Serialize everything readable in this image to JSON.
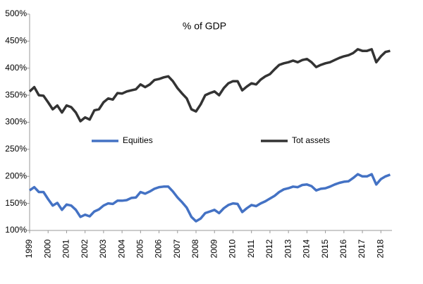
{
  "chart_data": {
    "type": "line",
    "subtitle": "% of GDP",
    "x": [
      1999,
      1999.25,
      1999.5,
      1999.75,
      2000,
      2000.25,
      2000.5,
      2000.75,
      2001,
      2001.25,
      2001.5,
      2001.75,
      2002,
      2002.25,
      2002.5,
      2002.75,
      2003,
      2003.25,
      2003.5,
      2003.75,
      2004,
      2004.25,
      2004.5,
      2004.75,
      2005,
      2005.25,
      2005.5,
      2005.75,
      2006,
      2006.25,
      2006.5,
      2006.75,
      2007,
      2007.25,
      2007.5,
      2007.75,
      2008,
      2008.25,
      2008.5,
      2008.75,
      2009,
      2009.25,
      2009.5,
      2009.75,
      2010,
      2010.25,
      2010.5,
      2010.75,
      2011,
      2011.25,
      2011.5,
      2011.75,
      2012,
      2012.25,
      2012.5,
      2012.75,
      2013,
      2013.25,
      2013.5,
      2013.75,
      2014,
      2014.25,
      2014.5,
      2014.75,
      2015,
      2015.25,
      2015.5,
      2015.75,
      2016,
      2016.25,
      2016.5,
      2016.75,
      2017,
      2017.25,
      2017.5,
      2017.75,
      2018,
      2018.25,
      2018.5
    ],
    "series": [
      {
        "name": "Equities",
        "color": "#4472c4",
        "values": [
          174,
          180,
          171,
          171,
          158,
          146,
          151,
          138,
          148,
          146,
          138,
          125,
          129,
          126,
          135,
          139,
          146,
          150,
          149,
          155,
          155,
          156,
          160,
          161,
          171,
          168,
          172,
          177,
          180,
          181,
          181,
          172,
          161,
          152,
          142,
          125,
          117,
          122,
          132,
          135,
          138,
          132,
          141,
          147,
          150,
          149,
          134,
          141,
          147,
          145,
          150,
          154,
          159,
          164,
          171,
          176,
          178,
          181,
          180,
          184,
          185,
          182,
          174,
          177,
          178,
          181,
          185,
          188,
          190,
          191,
          197,
          204,
          200,
          200,
          204,
          185,
          195,
          200,
          203
        ]
      },
      {
        "name": "Tot assets",
        "color": "#333333",
        "values": [
          357,
          365,
          350,
          349,
          337,
          324,
          331,
          318,
          331,
          328,
          318,
          302,
          309,
          305,
          322,
          324,
          337,
          344,
          342,
          354,
          353,
          357,
          359,
          361,
          370,
          365,
          370,
          378,
          380,
          383,
          385,
          376,
          363,
          353,
          344,
          324,
          320,
          333,
          350,
          354,
          357,
          350,
          363,
          372,
          376,
          376,
          359,
          366,
          372,
          370,
          379,
          385,
          389,
          398,
          406,
          409,
          411,
          414,
          411,
          415,
          417,
          411,
          402,
          406,
          409,
          411,
          415,
          419,
          422,
          424,
          428,
          435,
          432,
          432,
          435,
          411,
          422,
          430,
          432
        ]
      }
    ],
    "xlim": [
      1999,
      2018.6
    ],
    "xticks": [
      1999,
      2000,
      2001,
      2002,
      2003,
      2004,
      2005,
      2006,
      2007,
      2008,
      2009,
      2010,
      2011,
      2012,
      2013,
      2014,
      2015,
      2016,
      2017,
      2018
    ],
    "ylim": [
      100,
      500
    ],
    "yticks": [
      {
        "value": 100,
        "label": "100%"
      },
      {
        "value": 150,
        "label": "150%"
      },
      {
        "value": 200,
        "label": "200%"
      },
      {
        "value": 250,
        "label": "250%"
      },
      {
        "value": 300,
        "label": "300%"
      },
      {
        "value": 350,
        "label": "350%"
      },
      {
        "value": 400,
        "label": "400%"
      },
      {
        "value": 450,
        "label": "450%"
      },
      {
        "value": 500,
        "label": "500%"
      }
    ]
  }
}
